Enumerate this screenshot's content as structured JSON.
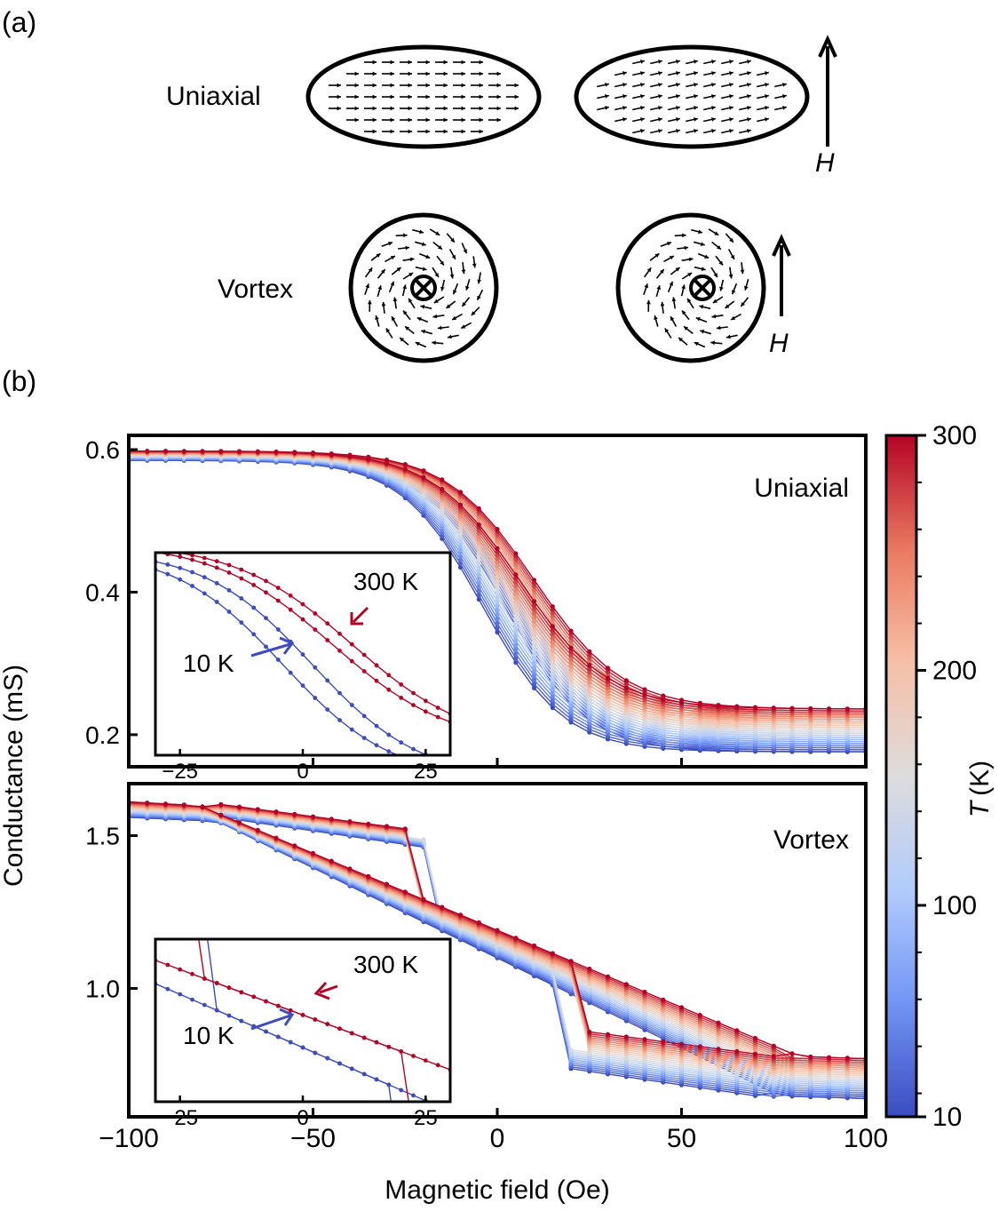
{
  "panel_a": {
    "label": "(a)",
    "uniaxial_label": "Uniaxial",
    "vortex_label": "Vortex",
    "field_label": "H"
  },
  "panel_b": {
    "label": "(b)"
  },
  "chart_data": [
    {
      "type": "line",
      "panel": "uniaxial",
      "annotation": "Uniaxial",
      "xlim": [
        -100,
        100
      ],
      "ylim": [
        0.155,
        0.62
      ],
      "yticks": [
        0.2,
        0.4,
        0.6
      ],
      "xticks": [
        -100,
        -50,
        0,
        50,
        100
      ],
      "ylabel": "Conductance (mS)",
      "series_model": {
        "low_T": {
          "T": 10,
          "g_max": 0.585,
          "g_min": 0.176,
          "center_up": 2,
          "center_down": -4,
          "width": 11
        },
        "high_T": {
          "T": 300,
          "g_max": 0.598,
          "g_min": 0.236,
          "center_up": 10,
          "center_down": 6,
          "width": 12
        }
      },
      "inset": {
        "xlim": [
          -30,
          30
        ],
        "xticks": [
          -25,
          0,
          25
        ],
        "labels": [
          {
            "text": "300 K",
            "color": "#b40426"
          },
          {
            "text": "10 K",
            "color": "#3b4cc0"
          }
        ]
      }
    },
    {
      "type": "line",
      "panel": "vortex",
      "annotation": "Vortex",
      "xlim": [
        -100,
        100
      ],
      "ylim": [
        0.58,
        1.67
      ],
      "yticks": [
        1.0,
        1.5
      ],
      "xticks": [
        -100,
        -50,
        0,
        50,
        100
      ],
      "xlabel": "Magnetic field (Oe)",
      "series_model": {
        "low_T": {
          "T": 10,
          "g_max": 1.56,
          "g_min": 0.64,
          "nucleation": 30,
          "annihilation": 75
        },
        "high_T": {
          "T": 300,
          "g_max": 1.61,
          "g_min": 0.77,
          "nucleation": 34,
          "annihilation": 80
        }
      },
      "inset": {
        "xlim": [
          -30,
          30
        ],
        "xticks": [
          -25,
          0,
          25
        ],
        "labels": [
          {
            "text": "300 K",
            "color": "#b40426"
          },
          {
            "text": "10 K",
            "color": "#3b4cc0"
          }
        ]
      }
    }
  ],
  "colorbar": {
    "label_italic": "T",
    "label_unit": "(K)",
    "ticks": [
      10,
      100,
      200,
      300
    ],
    "colormap": [
      "#3b4cc0",
      "#7396f5",
      "#b0cbfc",
      "#dddcdc",
      "#f6bfa6",
      "#ea7b60",
      "#b40426"
    ]
  }
}
